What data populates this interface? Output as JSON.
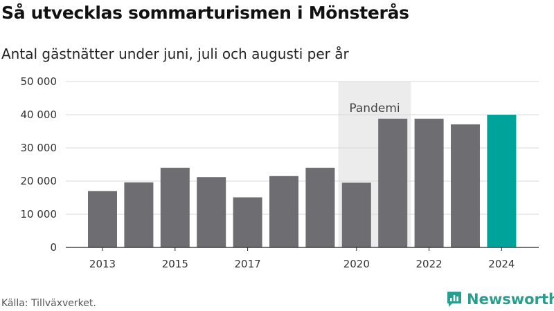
{
  "header": {
    "title": "Så utvecklas sommarturismen i Mönsterås",
    "subtitle": "Antal gästnätter under juni, juli och augusti per år"
  },
  "footer": {
    "source": "Källa: Tillväxverket.",
    "brand": "Newsworthy",
    "brand_icon": "chat-bar-chart-icon"
  },
  "colors": {
    "bar": "#6e6d72",
    "highlight": "#00a39a",
    "band": "#ececec",
    "grid": "#d9d9d9",
    "brand": "#2a9d8f"
  },
  "chart_data": {
    "type": "bar",
    "categories": [
      "2013",
      "2014",
      "2015",
      "2016",
      "2017",
      "2018",
      "2019",
      "2020",
      "2021",
      "2022",
      "2023",
      "2024"
    ],
    "values": [
      17000,
      19600,
      24000,
      21200,
      15100,
      21500,
      24000,
      19500,
      38800,
      38800,
      37100,
      40000
    ],
    "highlight_category": "2024",
    "ylim": [
      0,
      50000
    ],
    "yticks": [
      0,
      10000,
      20000,
      30000,
      40000,
      50000
    ],
    "ytick_labels": [
      "0",
      "10 000",
      "20 000",
      "30 000",
      "40 000",
      "50 000"
    ],
    "xtick_labels": [
      "2013",
      "2015",
      "2017",
      "2020",
      "2022",
      "2024"
    ],
    "annotation": {
      "label": "Pandemi",
      "span": [
        "2020",
        "2021"
      ]
    },
    "grid": true,
    "xlabel": "",
    "ylabel": ""
  }
}
